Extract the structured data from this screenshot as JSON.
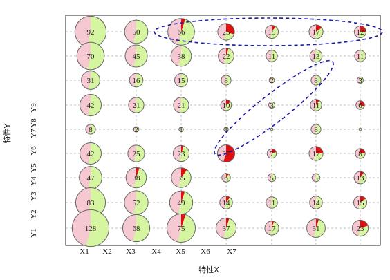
{
  "chart_data": {
    "type": "scatter",
    "subtype": "pie-bubble-matrix",
    "title": "",
    "xlabel": "特性X",
    "ylabel": "特性Y",
    "x_tick_labels": [
      "X1",
      "X2",
      "X3",
      "X4",
      "X5",
      "X6",
      "X7"
    ],
    "y_tick_labels": [
      "Y1",
      "Y2",
      "Y3",
      "Y4",
      "Y5",
      "Y6",
      "Y7",
      "Y8",
      "Y9"
    ],
    "columns": 7,
    "rows": 9,
    "grid": true,
    "colors": {
      "green": "#d6f5a0",
      "pink": "#f5c8d2",
      "red": "#e01010",
      "outline": "#666666",
      "grid": "#aaaaaa",
      "annotation": "#1a1aaa"
    },
    "rows_data": [
      [
        {
          "n": "92",
          "r": 0.0
        },
        {
          "n": "50",
          "r": 0.0
        },
        {
          "n": "66",
          "r": 0.05
        },
        {
          "n": "25",
          "r": 0.3
        },
        {
          "n": "15",
          "r": 0.1
        },
        {
          "n": "17",
          "r": 0.15
        },
        {
          "n": "12",
          "r": 0.25
        }
      ],
      [
        {
          "n": "70",
          "r": 0.0
        },
        {
          "n": "45",
          "r": 0.0
        },
        {
          "n": "38",
          "r": 0.0
        },
        {
          "n": "22",
          "r": 0.05
        },
        {
          "n": "11",
          "r": 0.0
        },
        {
          "n": "13",
          "r": 0.0
        },
        {
          "n": "11",
          "r": 0.0
        }
      ],
      [
        {
          "n": "31",
          "r": 0.0
        },
        {
          "n": "16",
          "r": 0.0
        },
        {
          "n": "15",
          "r": 0.0
        },
        {
          "n": "8",
          "r": 0.0
        },
        {
          "n": "2",
          "r": 0.0
        },
        {
          "n": "8",
          "r": 0.0
        },
        {
          "n": "3",
          "r": 0.0
        }
      ],
      [
        {
          "n": "42",
          "r": 0.0
        },
        {
          "n": "21",
          "r": 0.0
        },
        {
          "n": "21",
          "r": 0.0
        },
        {
          "n": "10",
          "r": 0.15
        },
        {
          "n": "3",
          "r": 0.0
        },
        {
          "n": "11",
          "r": 0.1
        },
        {
          "n": "6",
          "r": 0.3
        }
      ],
      [
        {
          "n": "8",
          "r": 0.0
        },
        {
          "n": "2",
          "r": 0.0
        },
        {
          "n": "1",
          "r": 0.0
        },
        {
          "n": "1",
          "r": 0.0
        },
        {
          "n": "",
          "r": 0.0
        },
        {
          "n": "8",
          "r": 0.0
        },
        {
          "n": "",
          "r": 0.0
        }
      ],
      [
        {
          "n": "42",
          "r": 0.0
        },
        {
          "n": "25",
          "r": 0.0
        },
        {
          "n": "23",
          "r": 0.05
        },
        {
          "n": "27",
          "r": 0.55
        },
        {
          "n": "7",
          "r": 0.2
        },
        {
          "n": "17",
          "r": 0.25
        },
        {
          "n": "8",
          "r": 0.25
        }
      ],
      [
        {
          "n": "47",
          "r": 0.0
        },
        {
          "n": "38",
          "r": 0.05
        },
        {
          "n": "35",
          "r": 0.1
        },
        {
          "n": "6",
          "r": 0.1
        },
        {
          "n": "5",
          "r": 0.0
        },
        {
          "n": "5",
          "r": 0.0
        },
        {
          "n": "13",
          "r": 0.1
        }
      ],
      [
        {
          "n": "83",
          "r": 0.0
        },
        {
          "n": "52",
          "r": 0.0
        },
        {
          "n": "49",
          "r": 0.05
        },
        {
          "n": "14",
          "r": 0.1
        },
        {
          "n": "11",
          "r": 0.0
        },
        {
          "n": "14",
          "r": 0.0
        },
        {
          "n": "15",
          "r": 0.15
        }
      ],
      [
        {
          "n": "128",
          "r": 0.0
        },
        {
          "n": "68",
          "r": 0.0
        },
        {
          "n": "75",
          "r": 0.05
        },
        {
          "n": "37",
          "r": 0.05
        },
        {
          "n": "17",
          "r": 0.05
        },
        {
          "n": "31",
          "r": 0.05
        },
        {
          "n": "23",
          "r": 0.2
        }
      ]
    ]
  }
}
